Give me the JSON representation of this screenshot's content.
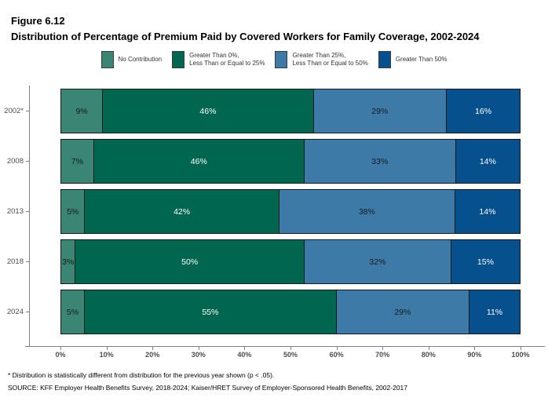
{
  "header": {
    "figure_label": "Figure 6.12",
    "title": "Distribution of Percentage of Premium Paid by Covered Workers for Family Coverage, 2002-2024"
  },
  "legend": {
    "items": [
      {
        "label_lines": [
          "No Contribution"
        ],
        "color": "#3A8573"
      },
      {
        "label_lines": [
          "Greater Than 0%,",
          "Less Than or Equal to 25%"
        ],
        "color": "#00664F"
      },
      {
        "label_lines": [
          "Greater Than 25%,",
          "Less Than or Equal to 50%"
        ],
        "color": "#3D7AA8"
      },
      {
        "label_lines": [
          "Greater Than 50%"
        ],
        "color": "#07508E"
      }
    ]
  },
  "chart_data": {
    "type": "bar",
    "orientation": "horizontal",
    "stacked": true,
    "title": "Distribution of Percentage of Premium Paid by Covered Workers for Family Coverage, 2002-2024",
    "categories": [
      "2002*",
      "2008",
      "2013",
      "2018",
      "2024"
    ],
    "series": [
      {
        "name": "No Contribution",
        "color": "#3A8573",
        "label_color": "#1a1a1a",
        "values": [
          9,
          7,
          5,
          3,
          5
        ]
      },
      {
        "name": "Greater Than 0%, Less Than or Equal to 25%",
        "color": "#00664F",
        "label_color": "#ffffff",
        "values": [
          46,
          46,
          42,
          50,
          55
        ]
      },
      {
        "name": "Greater Than 25%, Less Than or Equal to 50%",
        "color": "#3D7AA8",
        "label_color": "#1a1a1a",
        "values": [
          29,
          33,
          38,
          32,
          29
        ]
      },
      {
        "name": "Greater Than 50%",
        "color": "#07508E",
        "label_color": "#ffffff",
        "values": [
          16,
          14,
          14,
          15,
          11
        ]
      }
    ],
    "value_suffix": "%",
    "x_ticks": [
      "0%",
      "10%",
      "20%",
      "30%",
      "40%",
      "50%",
      "60%",
      "70%",
      "80%",
      "90%",
      "100%"
    ],
    "xlim": [
      0,
      100
    ],
    "xlabel": "",
    "ylabel": "",
    "grid": false,
    "legend_position": "top"
  },
  "footnotes": {
    "note": "* Distribution is statistically different from distribution for the previous year shown (p < .05).",
    "source": "SOURCE: KFF Employer Health Benefits Survey, 2018-2024; Kaiser/HRET Survey of Employer-Sponsored Health Benefits, 2002-2017"
  }
}
